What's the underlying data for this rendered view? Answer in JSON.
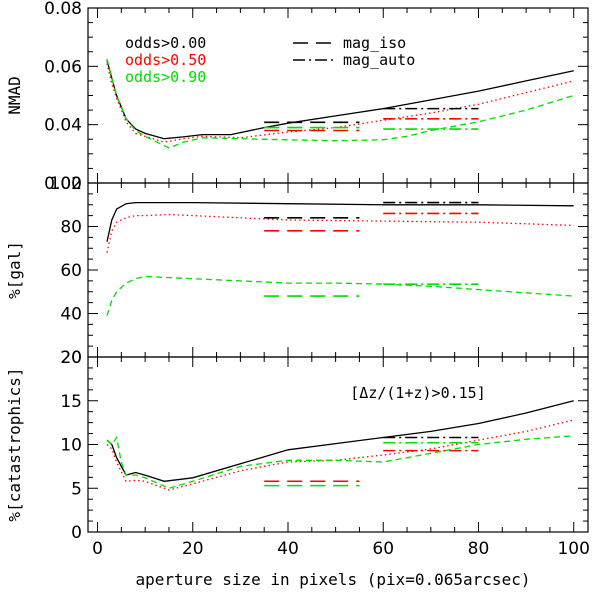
{
  "chart_data": {
    "type": "line",
    "x_axis": {
      "label": "aperture size in pixels (pix=0.065arcsec)",
      "range": [
        -2,
        103
      ],
      "ticks": [
        0,
        20,
        40,
        60,
        80,
        100
      ],
      "tick_labels": [
        "0",
        "20",
        "40",
        "60",
        "80",
        "100"
      ]
    },
    "legend": {
      "odds": [
        {
          "label": "odds>0.00",
          "color": "#000000"
        },
        {
          "label": "odds>0.50",
          "color": "#ff0000"
        },
        {
          "label": "odds>0.90",
          "color": "#00dd00"
        }
      ],
      "styles": [
        {
          "label": "mag_iso",
          "dash": "longdash"
        },
        {
          "label": "mag_auto",
          "dash": "dashdot"
        }
      ]
    },
    "colors": {
      "black": "#000000",
      "red": "#ff0000",
      "green": "#00dd00"
    },
    "panels": [
      {
        "id": "nmad",
        "ylabel": "NMAD",
        "ylim": [
          0.02,
          0.08
        ],
        "yticks": [
          0.02,
          0.04,
          0.06,
          0.08
        ],
        "ytick_labels": [
          "0.02",
          "0.04",
          "0.06",
          "0.08"
        ],
        "series": [
          {
            "name": "odds>0.00",
            "color": "black",
            "dash": "solid",
            "x": [
              2,
              3,
              4,
              6,
              8,
              10,
              14,
              18,
              22,
              28,
              35,
              40,
              50,
              60,
              70,
              80,
              90,
              100
            ],
            "y": [
              0.062,
              0.056,
              0.05,
              0.042,
              0.0385,
              0.037,
              0.0352,
              0.0358,
              0.0366,
              0.0366,
              0.039,
              0.0405,
              0.043,
              0.0455,
              0.0485,
              0.0515,
              0.055,
              0.0585
            ]
          },
          {
            "name": "odds>0.50",
            "color": "red",
            "dash": "dotted",
            "x": [
              2,
              3,
              4,
              6,
              8,
              10,
              14,
              18,
              22,
              30,
              40,
              50,
              60,
              70,
              80,
              90,
              100
            ],
            "y": [
              0.061,
              0.054,
              0.049,
              0.041,
              0.037,
              0.036,
              0.034,
              0.0352,
              0.036,
              0.0355,
              0.0375,
              0.039,
              0.0415,
              0.044,
              0.047,
              0.051,
              0.055
            ]
          },
          {
            "name": "odds>0.90",
            "color": "green",
            "dash": "dashed",
            "x": [
              2,
              3,
              4,
              6,
              8,
              10,
              15,
              18,
              22,
              30,
              40,
              50,
              60,
              65,
              70,
              80,
              90,
              100
            ],
            "y": [
              0.0625,
              0.056,
              0.05,
              0.042,
              0.038,
              0.036,
              0.032,
              0.034,
              0.0355,
              0.0352,
              0.0348,
              0.0345,
              0.0348,
              0.036,
              0.038,
              0.041,
              0.045,
              0.05
            ]
          }
        ],
        "segments": [
          {
            "color": "black",
            "dash": "longdash",
            "x": [
              35,
              55
            ],
            "y": 0.0408
          },
          {
            "color": "green",
            "dash": "longdash",
            "x": [
              35,
              55
            ],
            "y": 0.039
          },
          {
            "color": "red",
            "dash": "longdash",
            "x": [
              35,
              55
            ],
            "y": 0.038
          },
          {
            "color": "black",
            "dash": "dashdot",
            "x": [
              60,
              80
            ],
            "y": 0.0455
          },
          {
            "color": "red",
            "dash": "dashdot",
            "x": [
              60,
              80
            ],
            "y": 0.042
          },
          {
            "color": "green",
            "dash": "dashdot",
            "x": [
              60,
              80
            ],
            "y": 0.0385
          }
        ]
      },
      {
        "id": "gal",
        "ylabel": "%[gal]",
        "ylim": [
          20,
          100
        ],
        "yticks": [
          20,
          40,
          60,
          80,
          100
        ],
        "ytick_labels": [
          "20",
          "40",
          "60",
          "80",
          "100"
        ],
        "series": [
          {
            "name": "odds>0.00",
            "color": "black",
            "dash": "solid",
            "x": [
              2,
              3,
              4,
              6,
              8,
              10,
              20,
              40,
              60,
              80,
              100
            ],
            "y": [
              73,
              83,
              88,
              90.5,
              91,
              91,
              91,
              90.5,
              90,
              90,
              89.5
            ]
          },
          {
            "name": "odds>0.50",
            "color": "red",
            "dash": "dotted",
            "x": [
              2,
              3,
              4,
              6,
              8,
              10,
              15,
              20,
              40,
              60,
              80,
              100
            ],
            "y": [
              68,
              78,
              82,
              84,
              85,
              85,
              85.5,
              85,
              83,
              82.5,
              82,
              80.5
            ]
          },
          {
            "name": "odds>0.90",
            "color": "green",
            "dash": "dashed",
            "x": [
              2,
              3,
              4,
              6,
              8,
              10,
              15,
              20,
              30,
              40,
              50,
              60,
              70,
              80,
              90,
              100
            ],
            "y": [
              39,
              46,
              50,
              54,
              56,
              57,
              56.5,
              56,
              55,
              54,
              54,
              53.5,
              52.5,
              51,
              49.5,
              48
            ]
          }
        ],
        "segments": [
          {
            "color": "black",
            "dash": "longdash",
            "x": [
              35,
              55
            ],
            "y": 84
          },
          {
            "color": "red",
            "dash": "longdash",
            "x": [
              35,
              55
            ],
            "y": 78
          },
          {
            "color": "green",
            "dash": "longdash",
            "x": [
              35,
              55
            ],
            "y": 48
          },
          {
            "color": "black",
            "dash": "dashdot",
            "x": [
              60,
              80
            ],
            "y": 91
          },
          {
            "color": "red",
            "dash": "dashdot",
            "x": [
              60,
              80
            ],
            "y": 86
          },
          {
            "color": "green",
            "dash": "dashdot",
            "x": [
              60,
              80
            ],
            "y": 53.5
          }
        ]
      },
      {
        "id": "catastrophics",
        "ylabel": "%[catastrophics]",
        "ylim": [
          0,
          20
        ],
        "yticks": [
          0,
          5,
          10,
          15,
          20
        ],
        "ytick_labels": [
          "0",
          "5",
          "10",
          "15",
          "20"
        ],
        "annotation": "[Δz/(1+z)>0.15]",
        "series": [
          {
            "name": "odds>0.00",
            "color": "black",
            "dash": "solid",
            "x": [
              2,
              3,
              4,
              6,
              8,
              10,
              14,
              20,
              30,
              40,
              50,
              60,
              70,
              80,
              90,
              100
            ],
            "y": [
              10.5,
              10,
              8.5,
              6.5,
              6.8,
              6.5,
              5.8,
              6.2,
              7.8,
              9.4,
              10.1,
              10.8,
              11.5,
              12.4,
              13.6,
              15
            ]
          },
          {
            "name": "odds>0.50",
            "color": "red",
            "dash": "dotted",
            "x": [
              2,
              3,
              4,
              6,
              8,
              10,
              15,
              20,
              30,
              40,
              50,
              60,
              70,
              80,
              90,
              100
            ],
            "y": [
              10,
              9.5,
              8,
              5.8,
              5.9,
              5.8,
              4.8,
              5.5,
              7,
              8,
              8.2,
              8.8,
              9.5,
              10.5,
              11.5,
              12.8
            ]
          },
          {
            "name": "odds>0.90",
            "color": "green",
            "dash": "dashed",
            "x": [
              2,
              3,
              4,
              5,
              6,
              8,
              10,
              15,
              20,
              30,
              40,
              50,
              60,
              70,
              80,
              90,
              100
            ],
            "y": [
              10.5,
              10,
              10.8,
              8,
              6.5,
              6.5,
              6.2,
              5,
              5.8,
              7.5,
              8.2,
              8.2,
              8,
              9,
              10,
              10.6,
              11
            ]
          }
        ],
        "segments": [
          {
            "color": "red",
            "dash": "longdash",
            "x": [
              35,
              55
            ],
            "y": 5.8
          },
          {
            "color": "green",
            "dash": "longdash",
            "x": [
              35,
              55
            ],
            "y": 5.3
          },
          {
            "color": "black",
            "dash": "dashdot",
            "x": [
              60,
              80
            ],
            "y": 10.8
          },
          {
            "color": "green",
            "dash": "dashdot",
            "x": [
              60,
              80
            ],
            "y": 10.2
          },
          {
            "color": "red",
            "dash": "dashdot",
            "x": [
              60,
              80
            ],
            "y": 9.3
          }
        ]
      }
    ]
  }
}
